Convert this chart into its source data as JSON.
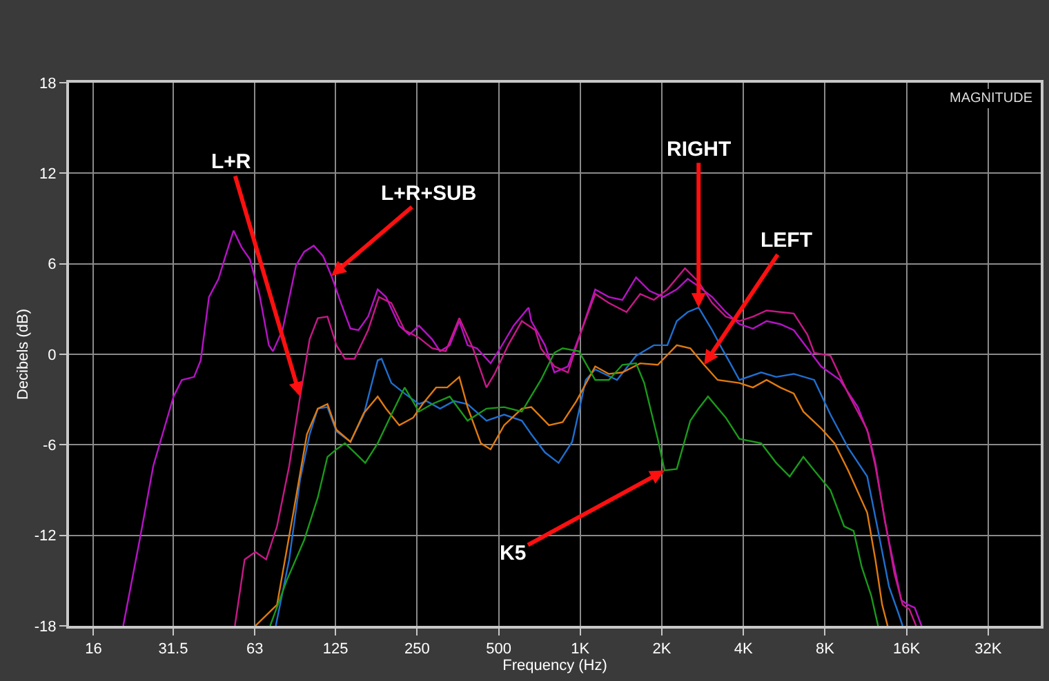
{
  "chart_data": {
    "type": "line",
    "xlabel": "Frequency (Hz)",
    "ylabel": "Decibels (dB)",
    "xlim": [
      13,
      50000
    ],
    "ylim": [
      -18,
      18
    ],
    "log": "x",
    "grid": true,
    "marker": "none",
    "line_style": "solid",
    "xticks": [
      16,
      31.5,
      63,
      125,
      250,
      500,
      {
        "value": 1000,
        "label": "1K"
      },
      {
        "value": 2000,
        "label": "2K"
      },
      {
        "value": 4000,
        "label": "4K"
      },
      {
        "value": 8000,
        "label": "8K"
      },
      {
        "value": 16000,
        "label": "16K"
      },
      {
        "value": 32000,
        "label": "32K"
      }
    ],
    "yticks": [
      -18,
      -12,
      -6,
      0,
      6,
      12,
      18
    ],
    "series": [
      {
        "color": "#b812c8",
        "x": [
          20.6,
          23.7,
          26.6,
          31.6,
          33.9,
          37.6,
          39.8,
          42.7,
          46.3,
          49.1,
          52.6,
          56.3,
          60.4,
          65.5,
          71,
          73.5,
          79.7,
          89.5,
          95.9,
          104,
          112.6,
          120.8,
          131,
          142,
          152,
          165,
          179,
          192,
          215,
          234,
          254,
          284,
          304,
          330,
          358,
          384,
          416,
          467,
          507,
          568,
          645,
          660,
          741,
          803,
          901,
          1012,
          1136,
          1275,
          1431,
          1607,
          1803,
          2025,
          2271,
          2492,
          2734,
          3068,
          3444,
          3866,
          4337,
          4871,
          5468,
          6136,
          6889,
          7734,
          9085,
          10570,
          11585,
          12272,
          13310,
          14418,
          15300,
          16200,
          17150,
          18170
        ],
        "values": [
          -18,
          -12.3,
          -7.4,
          -2.8,
          -1.7,
          -1.5,
          -0.4,
          3.8,
          5.0,
          6.5,
          8.2,
          7.1,
          6.3,
          4.0,
          0.6,
          0.2,
          1.6,
          5.9,
          6.8,
          7.2,
          6.5,
          5.2,
          3.4,
          1.7,
          1.6,
          2.5,
          4.3,
          3.8,
          1.9,
          1.3,
          1.9,
          1.0,
          0.2,
          0.6,
          2.2,
          0.6,
          0.4,
          -0.6,
          0.4,
          1.9,
          3.1,
          2.2,
          0.6,
          -1.2,
          -0.8,
          1.6,
          4.3,
          3.8,
          3.6,
          5.1,
          4.2,
          3.8,
          4.3,
          5.0,
          4.5,
          3.8,
          2.8,
          2.0,
          1.7,
          2.2,
          2.0,
          1.6,
          0.4,
          -0.8,
          -1.7,
          -3.5,
          -5.3,
          -7.2,
          -11.1,
          -14.1,
          -16.3,
          -16.6,
          -16.8,
          -18
        ]
      },
      {
        "color": "#c81888",
        "x": [
          53.2,
          57.8,
          63.3,
          69.4,
          76.1,
          84.4,
          92.6,
          100.4,
          107.6,
          116.8,
          126,
          135.5,
          147,
          165,
          181,
          201,
          225,
          254,
          284,
          319,
          358,
          402,
          451,
          483,
          542,
          609,
          683,
          716,
          803,
          901,
          1012,
          1136,
          1275,
          1482,
          1664,
          1869,
          2096,
          2435,
          2734,
          3068,
          3444,
          3866,
          4337,
          4871,
          6136,
          6889,
          7300,
          8380,
          9740,
          11450,
          12272,
          13620,
          14418,
          15470,
          16384,
          17350
        ],
        "values": [
          -18,
          -13.6,
          -13.1,
          -13.6,
          -11.4,
          -7.4,
          -2.8,
          1.0,
          2.4,
          2.5,
          0.6,
          -0.3,
          -0.3,
          1.6,
          3.8,
          3.4,
          1.6,
          1.1,
          0.4,
          0.2,
          2.4,
          0.4,
          -2.2,
          -1.3,
          0.6,
          2.2,
          1.6,
          0.4,
          -0.8,
          -1.2,
          1.6,
          4.0,
          3.4,
          2.8,
          4.0,
          3.6,
          4.3,
          5.7,
          4.8,
          3.4,
          2.5,
          2.2,
          2.5,
          2.9,
          2.7,
          1.3,
          0.1,
          -0.1,
          -2.6,
          -5.0,
          -7.4,
          -12.0,
          -14.5,
          -16.6,
          -16.9,
          -18
        ]
      },
      {
        "color": "#1f6fd0",
        "x": [
          75.3,
          84.4,
          92.6,
          100.4,
          107.6,
          116.8,
          126,
          142,
          159,
          179,
          185,
          201,
          225,
          254,
          271,
          304,
          342,
          384,
          451,
          524,
          609,
          660,
          741,
          832,
          934,
          1048,
          1136,
          1367,
          1607,
          1869,
          2096,
          2271,
          2492,
          2734,
          3068,
          3329,
          3604,
          3866,
          4653,
          5286,
          6136,
          7300,
          8380,
          9740,
          11450,
          12560,
          13780,
          14950,
          15470
        ],
        "values": [
          -18,
          -13.6,
          -8.3,
          -5.3,
          -3.6,
          -3.5,
          -5.1,
          -5.8,
          -4.0,
          -0.4,
          -0.3,
          -1.9,
          -2.6,
          -3.3,
          -3.1,
          -3.6,
          -3.1,
          -3.3,
          -4.4,
          -4.0,
          -4.4,
          -5.3,
          -6.5,
          -7.2,
          -5.8,
          -1.7,
          -1.0,
          -1.7,
          -0.1,
          0.6,
          0.6,
          2.2,
          2.8,
          3.1,
          1.6,
          0.4,
          -0.7,
          -1.7,
          -1.2,
          -1.5,
          -1.3,
          -1.7,
          -4.0,
          -6.2,
          -8.1,
          -11.7,
          -15.4,
          -17.2,
          -18
        ]
      },
      {
        "color": "#e07a10",
        "x": [
          63.3,
          76.1,
          87.4,
          98.1,
          107.6,
          116.8,
          126,
          142,
          159,
          179,
          192,
          215,
          242,
          262,
          294,
          323,
          358,
          384,
          430,
          467,
          524,
          609,
          660,
          767,
          861,
          968,
          1136,
          1275,
          1431,
          1664,
          1932,
          2271,
          2548,
          2864,
          3213,
          3866,
          4337,
          4871,
          5468,
          6136,
          6656,
          7734,
          8680,
          9740,
          11450,
          12272,
          13000,
          13620
        ],
        "values": [
          -18,
          -16.6,
          -10.5,
          -5.3,
          -3.6,
          -3.3,
          -5.0,
          -5.8,
          -3.9,
          -2.8,
          -3.6,
          -4.7,
          -4.2,
          -3.3,
          -2.2,
          -2.2,
          -1.5,
          -3.5,
          -5.9,
          -6.3,
          -4.7,
          -3.6,
          -3.5,
          -4.7,
          -4.5,
          -3.1,
          -0.8,
          -1.3,
          -1.2,
          -0.6,
          -0.7,
          0.6,
          0.4,
          -0.7,
          -1.7,
          -1.9,
          -2.2,
          -1.7,
          -2.2,
          -2.6,
          -3.8,
          -4.9,
          -5.9,
          -7.7,
          -10.5,
          -13.6,
          -16.6,
          -18
        ]
      },
      {
        "color": "#1a9a1a",
        "x": [
          71.8,
          82.6,
          95.9,
          107.6,
          116.8,
          126,
          135.5,
          147,
          161,
          179,
          201,
          225,
          254,
          284,
          330,
          384,
          451,
          524,
          609,
          716,
          803,
          861,
          989,
          1136,
          1275,
          1431,
          1607,
          1722,
          1932,
          2048,
          2271,
          2548,
          2734,
          2961,
          3444,
          3866,
          4653,
          5286,
          5928,
          6656,
          7300,
          8380,
          9410,
          10200,
          10930,
          11850,
          12560
        ],
        "values": [
          -18,
          -15.0,
          -12.3,
          -9.5,
          -6.8,
          -6.3,
          -5.9,
          -6.5,
          -7.2,
          -5.9,
          -4.0,
          -2.2,
          -3.8,
          -3.3,
          -2.8,
          -4.4,
          -3.6,
          -3.5,
          -3.8,
          -1.7,
          0.1,
          0.4,
          0.2,
          -1.7,
          -1.7,
          -0.7,
          -0.6,
          -1.9,
          -5.6,
          -7.7,
          -7.6,
          -4.4,
          -3.6,
          -2.8,
          -4.2,
          -5.6,
          -5.9,
          -7.2,
          -8.1,
          -6.8,
          -7.7,
          -9.0,
          -11.4,
          -11.7,
          -14.1,
          -16.0,
          -18
        ]
      }
    ],
    "annotations": [
      {
        "text": "L+R",
        "x": 92.6,
        "y": -2.8
      },
      {
        "text": "L+R+SUB",
        "x": 120.8,
        "y": 5.2
      },
      {
        "text": "RIGHT",
        "x": 2734,
        "y": 3.1
      },
      {
        "text": "LEFT",
        "x": 2864,
        "y": -0.7
      },
      {
        "text": "K5",
        "x": 2048,
        "y": -7.7
      },
      "MAGNITUDE"
    ]
  }
}
